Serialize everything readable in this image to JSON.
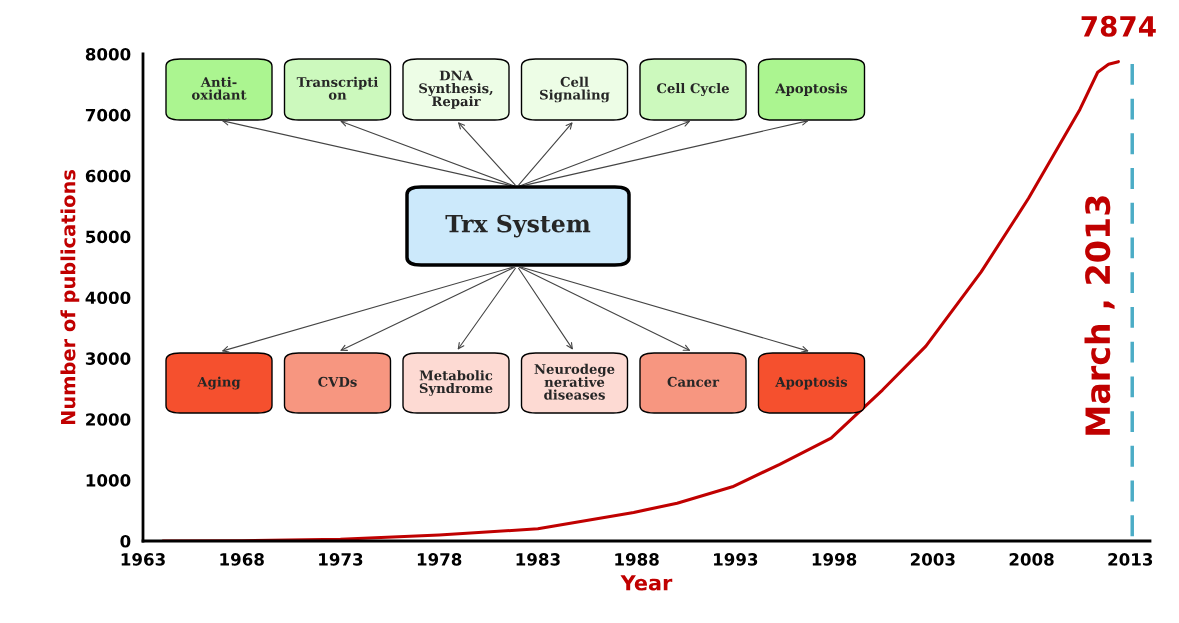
{
  "chart_data": {
    "type": "line",
    "xlabel": "Year",
    "ylabel": "Number of publications",
    "x": [
      1964,
      1968,
      1973,
      1978,
      1983,
      1987.85,
      1990.05,
      1992.85,
      1995.25,
      1997.85,
      2000.45,
      2002.65,
      2005.45,
      2007.85,
      2010.45,
      2011.35,
      2011.9,
      2012.4
    ],
    "series": [
      {
        "color": "#c00000",
        "values": [
          0,
          5,
          30,
          100,
          200,
          470,
          620,
          890,
          1260,
          1690,
          2480,
          3200,
          4420,
          5630,
          7090,
          7700,
          7830,
          7874
        ]
      }
    ],
    "xlim": [
      1963,
      2014
    ],
    "xticks": [
      1963,
      1968,
      1973,
      1978,
      1983,
      1988,
      1993,
      1998,
      2003,
      2008,
      2013
    ],
    "ylim": [
      0,
      8000
    ],
    "yticks": [
      0,
      1000,
      2000,
      3000,
      4000,
      5000,
      6000,
      7000,
      8000
    ],
    "grid": false,
    "legend": false,
    "marker": "none",
    "line_style": "solid",
    "ref_lines": [
      {
        "axis": "x",
        "value": 2013.1,
        "label": "March , 2013",
        "color": "#4bacc6",
        "line_style": "dashed"
      }
    ],
    "annotations": [
      {
        "text": "7874",
        "x": 2012.4,
        "y": 7874
      },
      "Anti-\noxidant",
      "Transcripti\non",
      "DNA\nSynthesis,\nRepair",
      "Cell\nSignaling",
      "Cell Cycle",
      "Apoptosis",
      "Trx System",
      "Aging",
      "CVDs",
      "Metabolic\nSyndrome",
      "Neurodege\nnerative\ndiseases",
      "Cancer",
      "Apoptosis"
    ]
  }
}
